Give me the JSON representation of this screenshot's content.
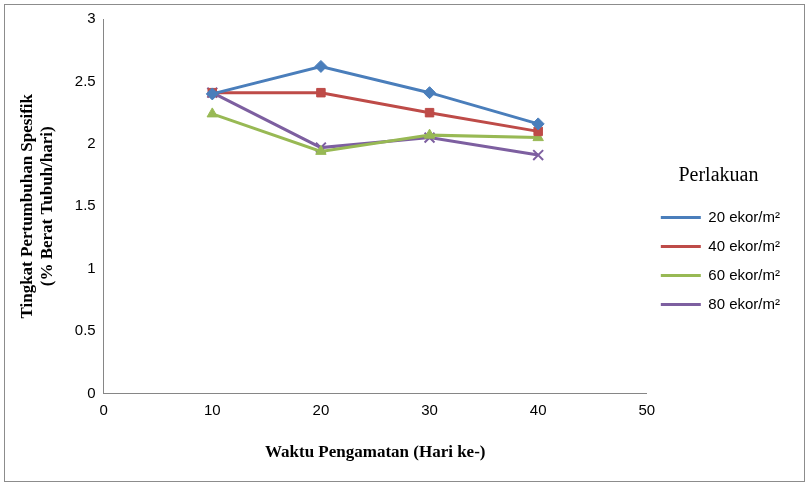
{
  "chart_data": {
    "type": "line",
    "x_label": "Waktu Pengamatan (Hari ke-)",
    "y_label": [
      "Tingkat Pertumbuhan Spesifik",
      "(% Berat Tubuh/hari)"
    ],
    "legend_title": "Perlakuan",
    "x": [
      10,
      20,
      30,
      40
    ],
    "series": [
      {
        "name": "20 ekor/m²",
        "color": "#4a7ebb",
        "marker": "diamond",
        "values": [
          2.4,
          2.62,
          2.41,
          2.16
        ]
      },
      {
        "name": "40 ekor/m²",
        "color": "#be4b48",
        "marker": "square",
        "values": [
          2.41,
          2.41,
          2.25,
          2.1
        ]
      },
      {
        "name": "60 ekor/m²",
        "color": "#98b954",
        "marker": "triangle",
        "values": [
          2.24,
          1.94,
          2.07,
          2.05
        ]
      },
      {
        "name": "80 ekor/m²",
        "color": "#7d5fa0",
        "marker": "cross",
        "values": [
          2.41,
          1.97,
          2.05,
          1.91
        ]
      }
    ],
    "xlim": [
      0,
      50
    ],
    "xticks": [
      0,
      10,
      20,
      30,
      40,
      50
    ],
    "ylim": [
      0,
      3
    ],
    "yticks": [
      0,
      0.5,
      1,
      1.5,
      2,
      2.5,
      3
    ],
    "grid": false,
    "legend": "right"
  }
}
